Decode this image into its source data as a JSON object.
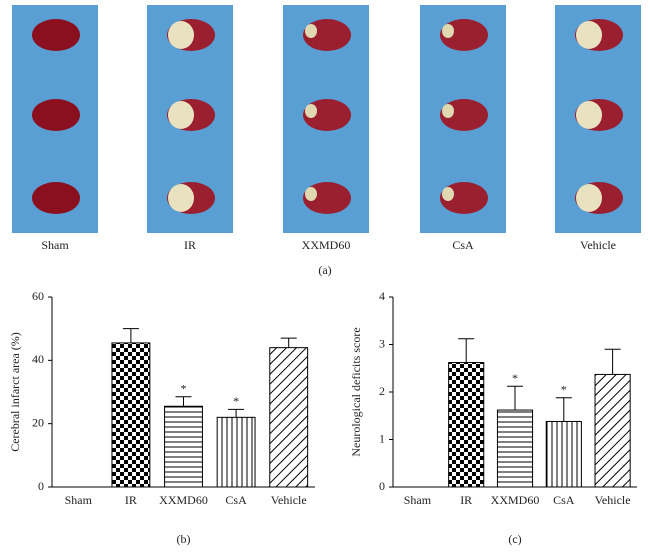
{
  "panel_a": {
    "labels": [
      "Sham",
      "IR",
      "XXMD60",
      "CsA",
      "Vehicle"
    ],
    "caption": "(a)"
  },
  "chart_data": [
    {
      "type": "bar",
      "caption": "(b)",
      "y_label": "Cerebral infarct area (%)",
      "categories": [
        "Sham",
        "IR",
        "XXMD60",
        "CsA",
        "Vehicle"
      ],
      "values": [
        0,
        45.5,
        25.5,
        22,
        44
      ],
      "errors": [
        0,
        4.5,
        3,
        2.5,
        3
      ],
      "value_annotations": [
        null,
        null,
        "*",
        "*",
        null
      ],
      "patterns": [
        null,
        "checker",
        "horizontal",
        "vertical",
        "diagonal"
      ],
      "color": "#000000",
      "ylim": [
        0,
        60
      ],
      "yticks": [
        0,
        20,
        40,
        60
      ]
    },
    {
      "type": "bar",
      "caption": "(c)",
      "y_label": "Neurological deficits score",
      "categories": [
        "Sham",
        "IR",
        "XXMD60",
        "CsA",
        "Vehicle"
      ],
      "values": [
        0,
        2.62,
        1.62,
        1.38,
        2.37
      ],
      "errors": [
        0,
        0.5,
        0.5,
        0.5,
        0.53
      ],
      "value_annotations": [
        null,
        null,
        "*",
        "*",
        null
      ],
      "patterns": [
        null,
        "checker",
        "horizontal",
        "vertical",
        "diagonal"
      ],
      "color": "#000000",
      "ylim": [
        0,
        4
      ],
      "yticks": [
        0,
        1,
        2,
        3,
        4
      ]
    }
  ]
}
